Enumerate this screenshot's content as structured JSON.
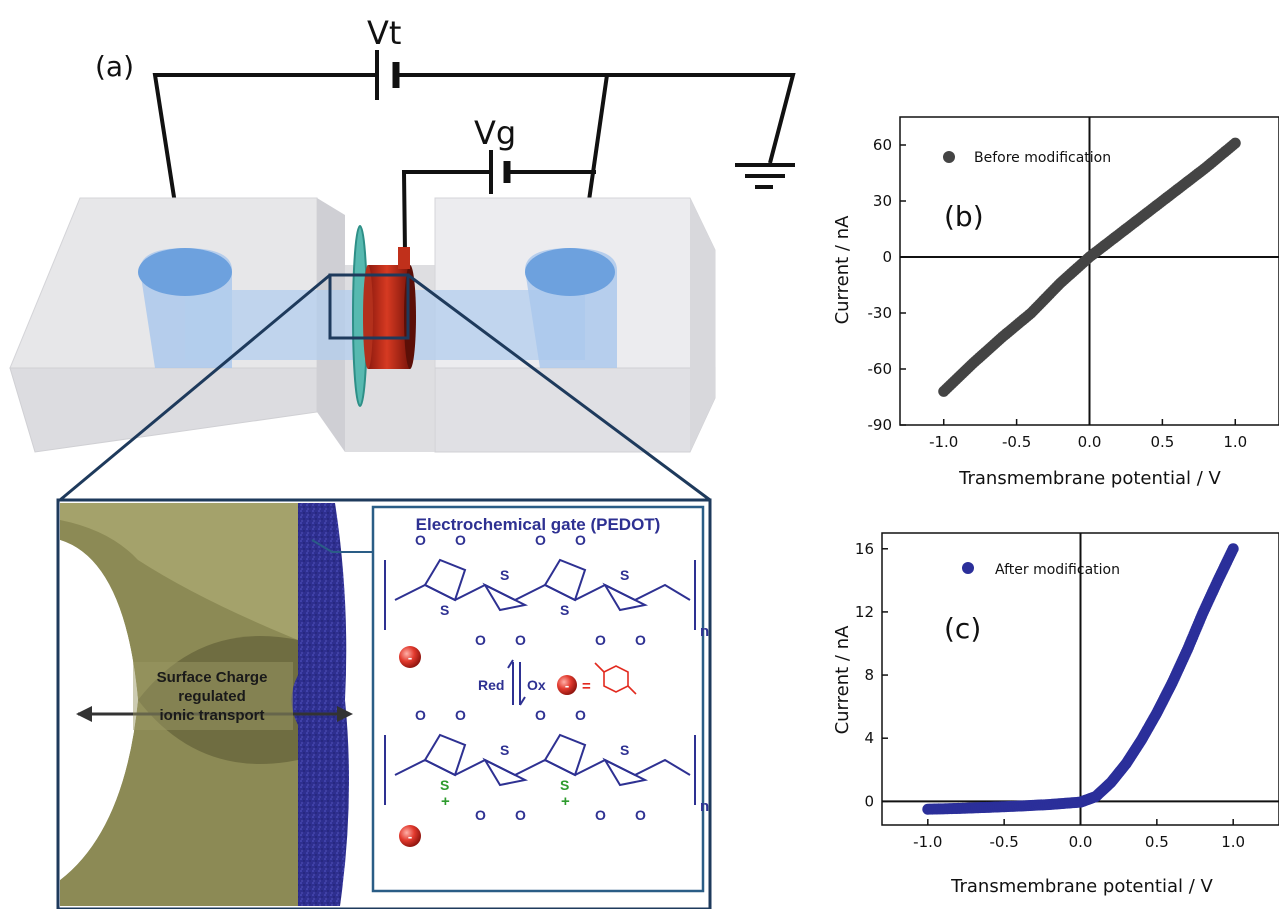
{
  "panel_a": {
    "label": "(a)",
    "vt_label": "Vt",
    "vg_label": "Vg",
    "inset_title": "Electrochemical gate (PEDOT)",
    "surface_charge_text": [
      "Surface Charge",
      "regulated",
      "ionic transport"
    ],
    "redox_red": "Red",
    "redox_ox": "Ox",
    "equals": "=",
    "subscript_n": "n",
    "atom_o": "O",
    "atom_s": "S",
    "plus": "+",
    "minus": "-"
  },
  "chart_data": [
    {
      "type": "scatter",
      "panel_label": "(b)",
      "xlabel": "Transmembrane potential / V",
      "ylabel": "Current / nA",
      "xlim": [
        -1.3,
        1.3
      ],
      "ylim": [
        -90,
        75
      ],
      "xticks": [
        "-1.0",
        "-0.5",
        "0.0",
        "0.5",
        "1.0"
      ],
      "yticks": [
        "-90",
        "-60",
        "-30",
        "0",
        "30",
        "60"
      ],
      "legend": "Before modification",
      "legend_position": "top-left",
      "color": "#444444",
      "x": [
        -1.0,
        -0.8,
        -0.6,
        -0.4,
        -0.2,
        0.0,
        0.2,
        0.4,
        0.6,
        0.8,
        1.0
      ],
      "y": [
        -72,
        -57,
        -43,
        -30,
        -14,
        0,
        12,
        24,
        36,
        48,
        61
      ]
    },
    {
      "type": "scatter",
      "panel_label": "(c)",
      "xlabel": "Transmembrane potential / V",
      "ylabel": "Current / nA",
      "xlim": [
        -1.3,
        1.3
      ],
      "ylim": [
        -1.5,
        17
      ],
      "xticks": [
        "-1.0",
        "-0.5",
        "0.0",
        "0.5",
        "1.0"
      ],
      "yticks": [
        "0",
        "4",
        "8",
        "12",
        "16"
      ],
      "legend": "After modification",
      "legend_position": "top-left",
      "color": "#2b2f9a",
      "x": [
        -1.0,
        -0.8,
        -0.6,
        -0.4,
        -0.2,
        0.0,
        0.1,
        0.2,
        0.3,
        0.4,
        0.5,
        0.6,
        0.7,
        0.8,
        0.9,
        1.0
      ],
      "y": [
        -0.5,
        -0.45,
        -0.38,
        -0.3,
        -0.2,
        -0.05,
        0.3,
        1.2,
        2.4,
        3.9,
        5.6,
        7.5,
        9.6,
        11.9,
        14.0,
        16.0
      ]
    }
  ]
}
